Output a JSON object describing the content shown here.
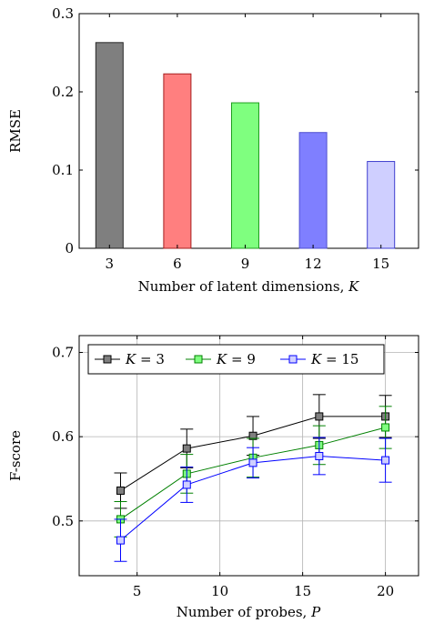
{
  "chart_data": [
    {
      "type": "bar",
      "xlabel": "Number of latent dimensions, ",
      "xlabel_var": "K",
      "ylabel": "RMSE",
      "categories": [
        "3",
        "6",
        "9",
        "12",
        "15"
      ],
      "values": [
        0.263,
        0.223,
        0.186,
        0.148,
        0.111
      ],
      "bar_colors": [
        "#7f7f7f",
        "#ff7f7f",
        "#7fff7f",
        "#7f7fff",
        "#cfcfff"
      ],
      "bar_strokes": [
        "#262626",
        "#a51f1f",
        "#1f9f1f",
        "#4f4fd0",
        "#3f3fcf"
      ],
      "ylim": [
        0,
        0.3
      ],
      "yticks": [
        0,
        0.1,
        0.2,
        0.3
      ],
      "ytick_labels": [
        "0",
        "0.1",
        "0.2",
        "0.3"
      ],
      "grid": false
    },
    {
      "type": "line",
      "xlabel": "Number of probes, ",
      "xlabel_var": "P",
      "ylabel": "F-score",
      "x": [
        4,
        8,
        12,
        16,
        20
      ],
      "xlim": [
        1.5,
        22
      ],
      "ylim": [
        0.435,
        0.72
      ],
      "xticks": [
        5,
        10,
        15,
        20
      ],
      "xtick_labels": [
        "5",
        "10",
        "15",
        "20"
      ],
      "yticks": [
        0.5,
        0.6,
        0.7
      ],
      "ytick_labels": [
        "0.5",
        "0.6",
        "0.7"
      ],
      "grid": true,
      "legend_position": "top",
      "series": [
        {
          "name": "K = 3",
          "name_var": "K",
          "name_rest": " = 3",
          "values": [
            0.536,
            0.586,
            0.601,
            0.624,
            0.624
          ],
          "errors": [
            0.021,
            0.023,
            0.023,
            0.026,
            0.025
          ],
          "color": "#000000",
          "fill": "#7f7f7f"
        },
        {
          "name": "K = 9",
          "name_var": "K",
          "name_rest": " = 9",
          "values": [
            0.502,
            0.556,
            0.575,
            0.59,
            0.611
          ],
          "errors": [
            0.021,
            0.023,
            0.023,
            0.023,
            0.025
          ],
          "color": "#008000",
          "fill": "#7fff7f"
        },
        {
          "name": "K = 15",
          "name_var": "K",
          "name_rest": " = 15",
          "values": [
            0.477,
            0.543,
            0.569,
            0.577,
            0.572
          ],
          "errors": [
            0.025,
            0.021,
            0.018,
            0.022,
            0.026
          ],
          "color": "#0000ff",
          "fill": "#cfcfff"
        }
      ]
    }
  ]
}
